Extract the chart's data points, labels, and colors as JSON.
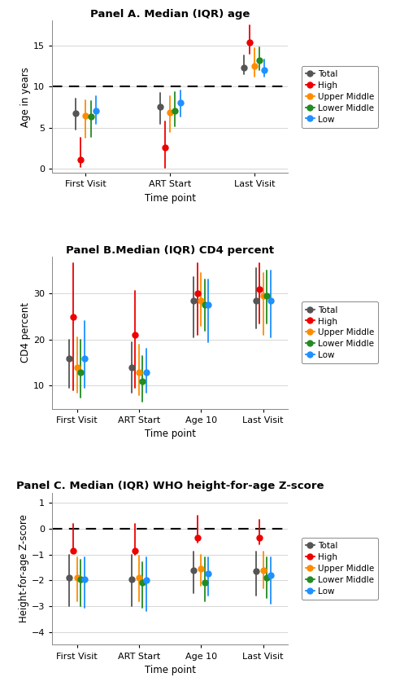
{
  "panel_A": {
    "title": "Panel A. Median (IQR) age",
    "ylabel": "Age in years",
    "xlabel": "Time point",
    "ylim": [
      -0.5,
      18
    ],
    "yticks": [
      0,
      5,
      10,
      15
    ],
    "dashed_line": 10,
    "timepoints": [
      "First Visit",
      "ART Start",
      "Last Visit"
    ],
    "series": {
      "Total": {
        "color": "#555555",
        "median": [
          6.7,
          7.5,
          12.3
        ],
        "q1": [
          4.8,
          5.5,
          11.5
        ],
        "q3": [
          8.5,
          9.2,
          13.8
        ]
      },
      "High": {
        "color": "#EE0000",
        "median": [
          1.1,
          2.6,
          15.4
        ],
        "q1": [
          0.2,
          0.1,
          14.0
        ],
        "q3": [
          3.8,
          5.8,
          17.4
        ]
      },
      "Upper Middle": {
        "color": "#FF8C00",
        "median": [
          6.4,
          6.8,
          12.5
        ],
        "q1": [
          3.8,
          4.5,
          11.2
        ],
        "q3": [
          8.3,
          8.8,
          14.7
        ]
      },
      "Lower Middle": {
        "color": "#228B22",
        "median": [
          6.3,
          7.0,
          13.2
        ],
        "q1": [
          3.9,
          5.2,
          12.0
        ],
        "q3": [
          8.2,
          9.3,
          14.8
        ]
      },
      "Low": {
        "color": "#1E90FF",
        "median": [
          7.0,
          8.0,
          12.0
        ],
        "q1": [
          5.5,
          6.3,
          11.2
        ],
        "q3": [
          8.8,
          9.5,
          13.3
        ]
      }
    },
    "offsets": [
      -0.12,
      -0.06,
      0.0,
      0.06,
      0.12
    ]
  },
  "panel_B": {
    "title": "Panel B.Median (IQR) CD4 percent",
    "ylabel": "CD4 percent",
    "xlabel": "Time point",
    "ylim": [
      5,
      38
    ],
    "yticks": [
      10,
      20,
      30
    ],
    "timepoints": [
      "First Visit",
      "ART Start",
      "Age 10",
      "Last Visit"
    ],
    "series": {
      "Total": {
        "color": "#555555",
        "median": [
          16.0,
          14.0,
          28.5,
          28.5
        ],
        "q1": [
          9.5,
          8.5,
          20.5,
          22.5
        ],
        "q3": [
          20.0,
          19.5,
          33.5,
          35.5
        ]
      },
      "High": {
        "color": "#EE0000",
        "median": [
          25.0,
          21.0,
          30.0,
          31.0
        ],
        "q1": [
          9.0,
          9.5,
          21.0,
          23.5
        ],
        "q3": [
          36.5,
          30.5,
          36.5,
          36.5
        ]
      },
      "Upper Middle": {
        "color": "#FF8C00",
        "median": [
          14.0,
          13.0,
          28.5,
          29.5
        ],
        "q1": [
          8.5,
          8.0,
          23.0,
          21.0
        ],
        "q3": [
          20.5,
          19.0,
          34.5,
          34.5
        ]
      },
      "Lower Middle": {
        "color": "#228B22",
        "median": [
          13.0,
          11.0,
          27.5,
          29.5
        ],
        "q1": [
          7.5,
          6.5,
          22.0,
          23.5
        ],
        "q3": [
          20.0,
          16.5,
          33.0,
          35.0
        ]
      },
      "Low": {
        "color": "#1E90FF",
        "median": [
          16.0,
          13.0,
          27.5,
          28.5
        ],
        "q1": [
          9.5,
          8.5,
          19.5,
          20.5
        ],
        "q3": [
          24.0,
          18.0,
          33.0,
          35.0
        ]
      }
    },
    "offsets": [
      -0.12,
      -0.06,
      0.0,
      0.06,
      0.12
    ]
  },
  "panel_C": {
    "title": "Panel C. Median (IQR) WHO height-for-age Z-score",
    "ylabel": "Height-for-age Z-score",
    "xlabel": "Time point",
    "ylim": [
      -4.5,
      1.4
    ],
    "yticks": [
      -4,
      -3,
      -2,
      -1,
      0,
      1
    ],
    "dashed_line": 0,
    "timepoints": [
      "First Visit",
      "ART Start",
      "Age 10",
      "Last Visit"
    ],
    "series": {
      "Total": {
        "color": "#555555",
        "median": [
          -1.9,
          -1.95,
          -1.6,
          -1.65
        ],
        "q1": [
          -3.0,
          -3.0,
          -2.5,
          -2.6
        ],
        "q3": [
          -1.0,
          -1.0,
          -0.9,
          -0.9
        ]
      },
      "High": {
        "color": "#EE0000",
        "median": [
          -0.85,
          -0.85,
          -0.35,
          -0.35
        ],
        "q1": [
          -0.95,
          -1.0,
          -0.55,
          -0.6
        ],
        "q3": [
          0.2,
          0.2,
          0.5,
          0.35
        ]
      },
      "Upper Middle": {
        "color": "#FF8C00",
        "median": [
          -1.9,
          -1.9,
          -1.55,
          -1.6
        ],
        "q1": [
          -2.8,
          -2.8,
          -2.2,
          -2.3
        ],
        "q3": [
          -1.1,
          -1.05,
          -1.0,
          -0.9
        ]
      },
      "Lower Middle": {
        "color": "#228B22",
        "median": [
          -1.95,
          -2.1,
          -2.1,
          -1.9
        ],
        "q1": [
          -3.0,
          -3.05,
          -2.8,
          -2.7
        ],
        "q3": [
          -1.2,
          -1.3,
          -1.1,
          -1.1
        ]
      },
      "Low": {
        "color": "#1E90FF",
        "median": [
          -1.95,
          -2.0,
          -1.75,
          -1.8
        ],
        "q1": [
          -3.05,
          -3.2,
          -2.6,
          -2.9
        ],
        "q3": [
          -1.1,
          -1.1,
          -1.1,
          -1.1
        ]
      }
    },
    "offsets": [
      -0.12,
      -0.06,
      0.0,
      0.06,
      0.12
    ]
  },
  "legend_labels": [
    "Total",
    "High",
    "Upper Middle",
    "Lower Middle",
    "Low"
  ],
  "legend_colors": [
    "#555555",
    "#EE0000",
    "#FF8C00",
    "#228B22",
    "#1E90FF"
  ],
  "fig_width": 4.92,
  "fig_height": 8.42,
  "dpi": 100
}
